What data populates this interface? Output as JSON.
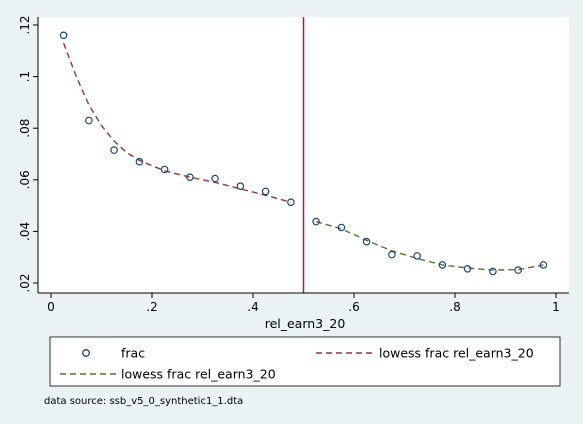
{
  "chart_data": {
    "type": "scatter",
    "title": "",
    "xlabel": "rel_earn3_20",
    "ylabel": "",
    "xlim": [
      0,
      1
    ],
    "ylim": [
      0.02,
      0.12
    ],
    "x_ticks": [
      0,
      0.2,
      0.4,
      0.6,
      0.8,
      1
    ],
    "x_tick_labels": [
      "0",
      ".2",
      ".4",
      ".6",
      ".8",
      "1"
    ],
    "y_ticks": [
      0.02,
      0.04,
      0.06,
      0.08,
      0.1,
      0.12
    ],
    "y_tick_labels": [
      ".02",
      ".04",
      ".06",
      ".08",
      ".1",
      ".12"
    ],
    "grid": false,
    "legend_position": "bottom",
    "reference_line": {
      "x": 0.5,
      "color": "#b5163b"
    },
    "series": [
      {
        "name": "frac",
        "kind": "scatter",
        "marker": "hollow-circle",
        "color": "#1a476f",
        "x": [
          0.025,
          0.075,
          0.125,
          0.175,
          0.225,
          0.275,
          0.325,
          0.375,
          0.425,
          0.475,
          0.525,
          0.575,
          0.625,
          0.675,
          0.725,
          0.775,
          0.825,
          0.875,
          0.925,
          0.975
        ],
        "y": [
          0.116,
          0.083,
          0.0715,
          0.067,
          0.064,
          0.061,
          0.0605,
          0.0575,
          0.0555,
          0.0513,
          0.0438,
          0.0415,
          0.036,
          0.031,
          0.0305,
          0.027,
          0.0255,
          0.0245,
          0.025,
          0.027
        ]
      },
      {
        "name": "lowess frac rel_earn3_20",
        "kind": "line",
        "dash": "dashed",
        "color": "#90353b",
        "x": [
          0.025,
          0.05,
          0.075,
          0.1,
          0.125,
          0.15,
          0.175,
          0.225,
          0.275,
          0.325,
          0.375,
          0.425,
          0.475
        ],
        "y": [
          0.113,
          0.1,
          0.089,
          0.081,
          0.075,
          0.0705,
          0.0675,
          0.0635,
          0.061,
          0.059,
          0.0565,
          0.054,
          0.0513
        ]
      },
      {
        "name": "lowess frac rel_earn3_20",
        "kind": "line",
        "dash": "dashed",
        "color": "#55752f",
        "x": [
          0.525,
          0.575,
          0.625,
          0.675,
          0.725,
          0.775,
          0.825,
          0.875,
          0.925,
          0.975
        ],
        "y": [
          0.0438,
          0.041,
          0.0365,
          0.0325,
          0.0295,
          0.027,
          0.0258,
          0.025,
          0.0252,
          0.027
        ]
      }
    ]
  },
  "legend": {
    "items": [
      {
        "label": "frac",
        "symbol": "circle",
        "color": "#1a476f"
      },
      {
        "label": "lowess frac rel_earn3_20",
        "symbol": "dash",
        "color": "#90353b"
      },
      {
        "label": "lowess frac rel_earn3_20",
        "symbol": "dash",
        "color": "#55752f"
      }
    ]
  },
  "note": "data source: ssb_v5_0_synthetic1_1.dta",
  "colors": {
    "background": "#eaf2f3",
    "plot_area": "#ffffff",
    "axis": "#000000"
  }
}
